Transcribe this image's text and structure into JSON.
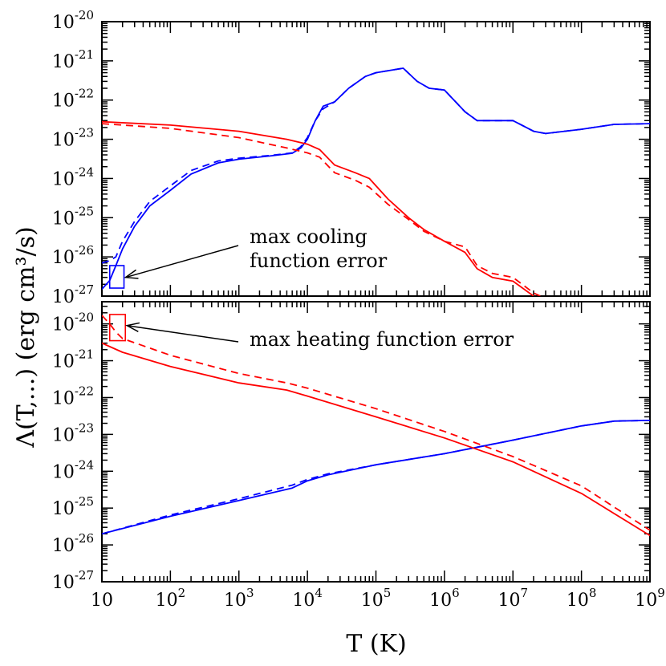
{
  "chart_data": [
    {
      "type": "line",
      "panel": "top",
      "xscale": "log",
      "yscale": "log",
      "xlim": [
        10,
        1000000000.0
      ],
      "ylim": [
        1e-27,
        1e-20
      ],
      "x_tick_labels": [],
      "y_tick_exponents": [
        "-27",
        "-26",
        "-25",
        "-24",
        "-23",
        "-22",
        "-21",
        "-20"
      ],
      "y_tick_base": "10",
      "series": [
        {
          "color": "#0000ff",
          "style": "solid",
          "points": [
            [
              10,
              1.5e-27
            ],
            [
              13,
              2.5e-27
            ],
            [
              16,
              6e-27
            ],
            [
              20,
              1.6e-26
            ],
            [
              30,
              6e-26
            ],
            [
              50,
              2e-25
            ],
            [
              100,
              5e-25
            ],
            [
              200,
              1.3e-24
            ],
            [
              500,
              2.5e-24
            ],
            [
              1000,
              3.1e-24
            ],
            [
              3000,
              3.8e-24
            ],
            [
              6000,
              4.4e-24
            ],
            [
              8000,
              6e-24
            ],
            [
              10000,
              1e-23
            ],
            [
              13000,
              3e-23
            ],
            [
              17000,
              7e-23
            ],
            [
              25000,
              9e-23
            ],
            [
              40000,
              2e-22
            ],
            [
              70000,
              4e-22
            ],
            [
              100000,
              5e-22
            ],
            [
              250000,
              6.5e-22
            ],
            [
              400000,
              3e-22
            ],
            [
              600000,
              2e-22
            ],
            [
              1000000,
              1.8e-22
            ],
            [
              2000000,
              5e-23
            ],
            [
              3000000,
              3e-23
            ],
            [
              10000000,
              3e-23
            ],
            [
              20000000,
              1.6e-23
            ],
            [
              30000000,
              1.4e-23
            ],
            [
              100000000,
              1.8e-23
            ],
            [
              300000000,
              2.4e-23
            ],
            [
              1000000000,
              2.5e-23
            ]
          ]
        },
        {
          "color": "#0000ff",
          "style": "dashed",
          "points": [
            [
              10,
              7e-27
            ],
            [
              13,
              8e-27
            ],
            [
              16,
              1e-26
            ],
            [
              20,
              2.5e-26
            ],
            [
              30,
              8e-26
            ],
            [
              50,
              2.6e-25
            ],
            [
              100,
              6.5e-25
            ],
            [
              200,
              1.6e-24
            ],
            [
              500,
              2.8e-24
            ],
            [
              1000,
              3.3e-24
            ],
            [
              3000,
              3.9e-24
            ],
            [
              6000,
              4.5e-24
            ],
            [
              8000,
              6.5e-24
            ],
            [
              10000,
              1.1e-23
            ],
            [
              13000,
              3e-23
            ],
            [
              17000,
              6e-23
            ],
            [
              25000,
              9e-23
            ],
            [
              40000,
              2e-22
            ],
            [
              70000,
              4e-22
            ],
            [
              100000,
              5e-22
            ],
            [
              250000,
              6.5e-22
            ],
            [
              400000,
              3e-22
            ],
            [
              600000,
              2e-22
            ],
            [
              1000000,
              1.8e-22
            ],
            [
              2000000,
              5e-23
            ],
            [
              3000000,
              3e-23
            ],
            [
              10000000,
              3e-23
            ],
            [
              20000000,
              1.6e-23
            ],
            [
              30000000,
              1.4e-23
            ],
            [
              100000000,
              1.8e-23
            ],
            [
              300000000,
              2.4e-23
            ],
            [
              1000000000,
              2.5e-23
            ]
          ]
        },
        {
          "color": "#ff0000",
          "style": "solid",
          "points": [
            [
              10,
              2.8e-23
            ],
            [
              100,
              2.3e-23
            ],
            [
              1000,
              1.6e-23
            ],
            [
              5000,
              1e-23
            ],
            [
              10000,
              7.5e-24
            ],
            [
              15000,
              5.5e-24
            ],
            [
              25000,
              2.2e-24
            ],
            [
              50000,
              1.4e-24
            ],
            [
              80000,
              1e-24
            ],
            [
              150000,
              3e-25
            ],
            [
              300000,
              1e-25
            ],
            [
              500000,
              5e-26
            ],
            [
              1000000,
              2.5e-26
            ],
            [
              2000000,
              1.3e-26
            ],
            [
              3000000,
              5e-27
            ],
            [
              5000000,
              3e-27
            ],
            [
              10000000,
              2.4e-27
            ],
            [
              20000000,
              1e-27
            ]
          ]
        },
        {
          "color": "#ff0000",
          "style": "dashed",
          "points": [
            [
              10,
              2.5e-23
            ],
            [
              100,
              1.9e-23
            ],
            [
              1000,
              1.1e-23
            ],
            [
              5000,
              6e-24
            ],
            [
              10000,
              4.5e-24
            ],
            [
              15000,
              3.5e-24
            ],
            [
              25000,
              1.4e-24
            ],
            [
              50000,
              9e-25
            ],
            [
              80000,
              6e-25
            ],
            [
              150000,
              2.2e-25
            ],
            [
              300000,
              9e-26
            ],
            [
              500000,
              4.5e-26
            ],
            [
              1000000,
              2.5e-26
            ],
            [
              2000000,
              1.8e-26
            ],
            [
              3000000,
              6e-27
            ],
            [
              5000000,
              3.8e-27
            ],
            [
              10000000,
              3e-27
            ],
            [
              20000000,
              1.2e-27
            ],
            [
              25000000,
              1e-27
            ]
          ]
        }
      ],
      "annotations": [
        {
          "text_lines": [
            "max cooling",
            "function error"
          ],
          "arrow_to": [
            21,
            3e-27
          ],
          "box_color": "#0000ff",
          "box_x": [
            13,
            21
          ],
          "box_y": [
            1.6e-27,
            6e-27
          ]
        }
      ]
    },
    {
      "type": "line",
      "panel": "bottom",
      "xscale": "log",
      "yscale": "log",
      "xlim": [
        10,
        1000000000.0
      ],
      "ylim": [
        1e-27,
        4e-20
      ],
      "x_tick_base_labels": [
        "10",
        "10",
        "10",
        "10",
        "10",
        "10",
        "10",
        "10",
        "10"
      ],
      "x_tick_exponents": [
        "",
        "2",
        "3",
        "4",
        "5",
        "6",
        "7",
        "8",
        "9"
      ],
      "y_tick_exponents": [
        "-27",
        "-26",
        "-25",
        "-24",
        "-23",
        "-22",
        "-21",
        "-20"
      ],
      "y_tick_base": "10",
      "series": [
        {
          "color": "#0000ff",
          "style": "solid",
          "points": [
            [
              10,
              2e-26
            ],
            [
              100,
              6e-26
            ],
            [
              1000,
              1.6e-25
            ],
            [
              6000,
              3.5e-25
            ],
            [
              10000,
              5.5e-25
            ],
            [
              20000,
              8e-25
            ],
            [
              100000,
              1.5e-24
            ],
            [
              1000000,
              3e-24
            ],
            [
              10000000,
              7e-24
            ],
            [
              100000000,
              1.7e-23
            ],
            [
              300000000,
              2.3e-23
            ],
            [
              1000000000,
              2.4e-23
            ]
          ]
        },
        {
          "color": "#0000ff",
          "style": "dashed",
          "points": [
            [
              10,
              2e-26
            ],
            [
              100,
              6.5e-26
            ],
            [
              1000,
              1.8e-25
            ],
            [
              6000,
              4.2e-25
            ],
            [
              10000,
              6e-25
            ],
            [
              20000,
              8.5e-25
            ],
            [
              100000,
              1.5e-24
            ],
            [
              1000000,
              3e-24
            ],
            [
              10000000,
              7e-24
            ],
            [
              100000000,
              1.7e-23
            ],
            [
              300000000,
              2.3e-23
            ],
            [
              1000000000,
              2.4e-23
            ]
          ]
        },
        {
          "color": "#ff0000",
          "style": "solid",
          "points": [
            [
              10,
              3e-21
            ],
            [
              20,
              1.7e-21
            ],
            [
              100,
              7e-22
            ],
            [
              1000,
              2.5e-22
            ],
            [
              5000,
              1.6e-22
            ],
            [
              10000,
              1.1e-22
            ],
            [
              100000,
              3e-23
            ],
            [
              1000000,
              8e-24
            ],
            [
              10000000,
              1.8e-24
            ],
            [
              100000000,
              2.5e-25
            ],
            [
              1000000000,
              1.8e-26
            ]
          ]
        },
        {
          "color": "#ff0000",
          "style": "dashed",
          "points": [
            [
              10,
              1.7e-20
            ],
            [
              13,
              1e-20
            ],
            [
              16,
              6e-21
            ],
            [
              20,
              4e-21
            ],
            [
              100,
              1.4e-21
            ],
            [
              1000,
              4.5e-22
            ],
            [
              5000,
              2.5e-22
            ],
            [
              10000,
              1.8e-22
            ],
            [
              100000,
              5e-23
            ],
            [
              1000000,
              1.2e-23
            ],
            [
              10000000,
              2.5e-24
            ],
            [
              100000000,
              4e-25
            ],
            [
              1000000000,
              2.5e-26
            ]
          ]
        }
      ],
      "annotations": [
        {
          "text_lines": [
            "max heating function error"
          ],
          "arrow_to": [
            22,
            9e-21
          ],
          "box_color": "#ff0000",
          "box_x": [
            13,
            22
          ],
          "box_y": [
            3.5e-21,
            1.8e-20
          ]
        }
      ]
    }
  ],
  "axes": {
    "xlabel": "T (K)",
    "ylabel": "Λ(T,...) (erg cm³/s)"
  }
}
